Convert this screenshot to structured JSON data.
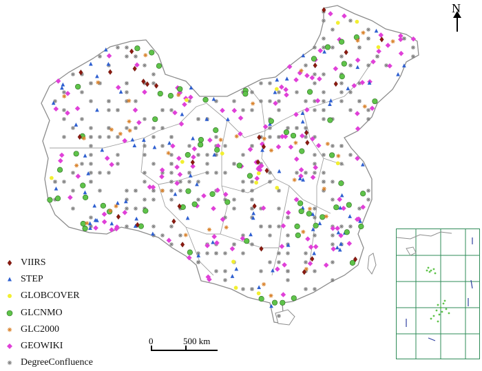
{
  "map": {
    "legend": [
      {
        "label": "VIIRS",
        "symbol": "diamond",
        "color": "#8b1a10"
      },
      {
        "label": "STEP",
        "symbol": "triangle",
        "color": "#2e5fd0"
      },
      {
        "label": "GLOBCOVER",
        "symbol": "circle-small",
        "color": "#f2ef30"
      },
      {
        "label": "GLCNMO",
        "symbol": "circle",
        "color": "#5fc34a"
      },
      {
        "label": "GLC2000",
        "symbol": "asterisk",
        "color": "#d9822b"
      },
      {
        "label": "GEOWIKI",
        "symbol": "diamond-pink",
        "color": "#e040d8"
      },
      {
        "label": "DegreeConfluence",
        "symbol": "asterisk-gray",
        "color": "#7f7f7f"
      }
    ],
    "north_label": "N",
    "scale": {
      "start": "0",
      "end": "500 km"
    },
    "colors": {
      "boundary": "#8c8c8c",
      "inset_grid": "#2e8b57",
      "land_fill": "#ffffff"
    }
  }
}
